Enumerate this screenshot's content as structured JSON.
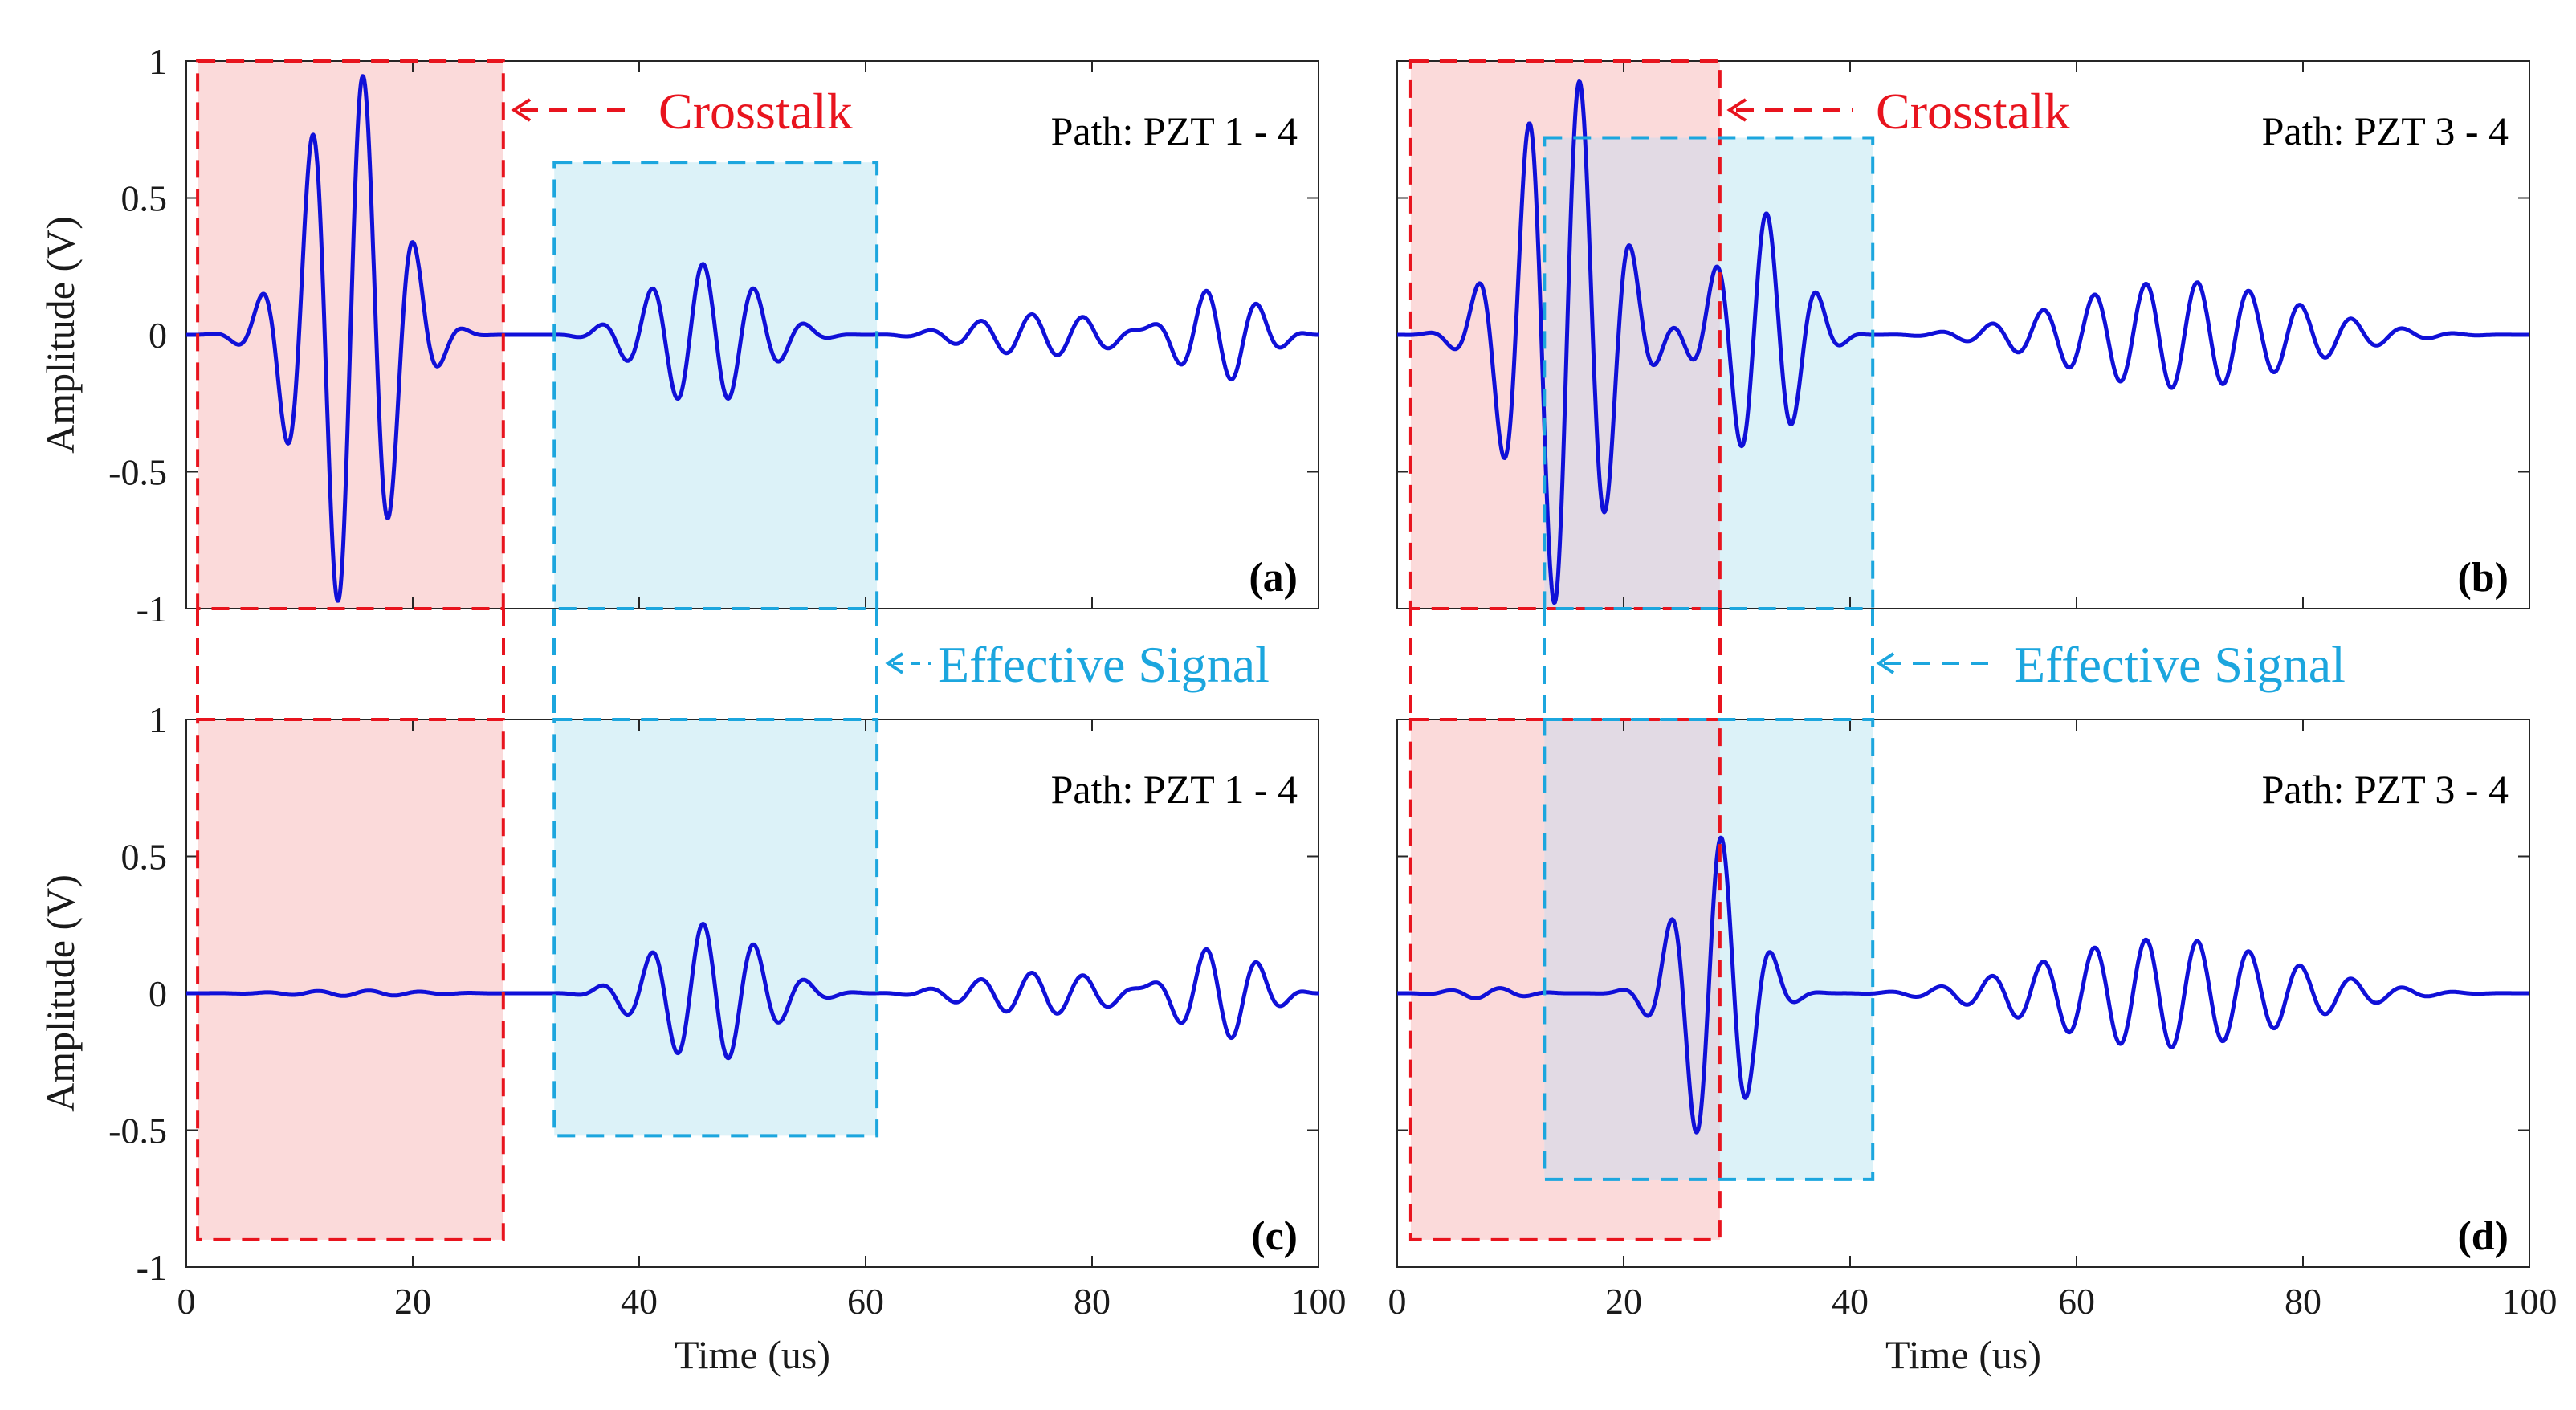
{
  "chart_data": [
    {
      "id": "a",
      "type": "line",
      "panel_label": "(a)",
      "path_label": "Path: PZT 1 - 4",
      "ylabel": "Amplitude (V)",
      "xlabel": "",
      "xlim": [
        0,
        100
      ],
      "ylim": [
        -1,
        1
      ],
      "xticks": [
        "0",
        "20",
        "40",
        "60",
        "80",
        "100"
      ],
      "xticks_shown": false,
      "yticks": [
        "-1",
        "-0.5",
        "0",
        "0.5",
        "1"
      ],
      "yticks_shown": true,
      "line_color": "#1010D8",
      "series": [
        {
          "packets": [
            {
              "t0": 0,
              "t1": 28,
              "amp": 1.0,
              "freq": 0.22,
              "center": 14.5,
              "sigma": 5.2
            },
            {
              "t0": 32,
              "t1": 60,
              "amp": 0.26,
              "freq": 0.22,
              "center": 45,
              "sigma": 8
            },
            {
              "t0": 60,
              "t1": 100,
              "amp": 0.1,
              "freq": 0.22,
              "center": 70,
              "sigma": 10
            },
            {
              "t0": 80,
              "t1": 100,
              "amp": 0.2,
              "freq": 0.22,
              "center": 95,
              "sigma": 8
            }
          ]
        }
      ],
      "boxes": [
        {
          "kind": "crosstalk",
          "x": [
            1,
            28
          ],
          "y": [
            -1,
            1
          ]
        },
        {
          "kind": "effective",
          "x": [
            32.5,
            61
          ],
          "y": [
            -1,
            0.63
          ]
        }
      ]
    },
    {
      "id": "b",
      "type": "line",
      "panel_label": "(b)",
      "path_label": "Path: PZT 3 - 4",
      "ylabel": "",
      "xlabel": "",
      "xlim": [
        0,
        100
      ],
      "ylim": [
        -1,
        1
      ],
      "xticks": [
        "0",
        "20",
        "40",
        "60",
        "80",
        "100"
      ],
      "xticks_shown": false,
      "yticks": [
        "-1",
        "-0.5",
        "0",
        "0.5",
        "1"
      ],
      "yticks_shown": false,
      "line_color": "#1010D8",
      "series": [
        {
          "packets": [
            {
              "t0": 0,
              "t1": 28,
              "amp": 1.0,
              "freq": 0.22,
              "center": 15,
              "sigma": 5.5
            },
            {
              "t0": 22,
              "t1": 42,
              "amp": 0.45,
              "freq": 0.22,
              "center": 32,
              "sigma": 6
            },
            {
              "t0": 42,
              "t1": 100,
              "amp": 0.2,
              "freq": 0.22,
              "center": 66,
              "sigma": 16
            }
          ]
        }
      ],
      "boxes": [
        {
          "kind": "crosstalk",
          "x": [
            1.2,
            28.5
          ],
          "y": [
            -1,
            1
          ]
        },
        {
          "kind": "effective",
          "x": [
            13,
            42
          ],
          "y": [
            -1,
            0.72
          ]
        }
      ]
    },
    {
      "id": "c",
      "type": "line",
      "panel_label": "(c)",
      "path_label": "Path: PZT 1 - 4",
      "ylabel": "Amplitude (V)",
      "xlabel": "Time (us)",
      "xlim": [
        0,
        100
      ],
      "ylim": [
        -1,
        1
      ],
      "xticks": [
        "0",
        "20",
        "40",
        "60",
        "80",
        "100"
      ],
      "xticks_shown": true,
      "yticks": [
        "-1",
        "-0.5",
        "0",
        "0.5",
        "1"
      ],
      "yticks_shown": true,
      "line_color": "#1010D8",
      "series": [
        {
          "packets": [
            {
              "t0": 0,
              "t1": 30,
              "amp": 0.01,
              "freq": 0.22,
              "center": 15,
              "sigma": 10
            },
            {
              "t0": 32,
              "t1": 62,
              "amp": 0.26,
              "freq": 0.22,
              "center": 45,
              "sigma": 7
            },
            {
              "t0": 60,
              "t1": 100,
              "amp": 0.1,
              "freq": 0.22,
              "center": 70,
              "sigma": 10
            },
            {
              "t0": 80,
              "t1": 100,
              "amp": 0.2,
              "freq": 0.22,
              "center": 95,
              "sigma": 8
            }
          ]
        }
      ],
      "boxes": [
        {
          "kind": "crosstalk",
          "x": [
            1,
            28
          ],
          "y": [
            -0.9,
            1
          ]
        },
        {
          "kind": "effective",
          "x": [
            32.5,
            61
          ],
          "y": [
            -0.52,
            1
          ]
        }
      ]
    },
    {
      "id": "d",
      "type": "line",
      "panel_label": "(d)",
      "path_label": "Path: PZT 3 - 4",
      "ylabel": "",
      "xlabel": "Time (us)",
      "xlim": [
        0,
        100
      ],
      "ylim": [
        -1,
        1
      ],
      "xticks": [
        "0",
        "20",
        "40",
        "60",
        "80",
        "100"
      ],
      "xticks_shown": true,
      "yticks": [
        "-1",
        "-0.5",
        "0",
        "0.5",
        "1"
      ],
      "yticks_shown": false,
      "line_color": "#1010D8",
      "series": [
        {
          "packets": [
            {
              "t0": 0,
              "t1": 16,
              "amp": 0.02,
              "freq": 0.22,
              "center": 8,
              "sigma": 6
            },
            {
              "t0": 16,
              "t1": 40,
              "amp": 0.58,
              "freq": 0.22,
              "center": 28,
              "sigma": 3.8
            },
            {
              "t0": 38,
              "t1": 100,
              "amp": 0.2,
              "freq": 0.22,
              "center": 66,
              "sigma": 16
            }
          ]
        }
      ],
      "boxes": [
        {
          "kind": "crosstalk",
          "x": [
            1.2,
            28.5
          ],
          "y": [
            -0.9,
            1
          ]
        },
        {
          "kind": "effective",
          "x": [
            13,
            42
          ],
          "y": [
            -0.68,
            1
          ]
        }
      ]
    }
  ],
  "annotations": {
    "crosstalk_text": "Crosstalk",
    "effective_text": "Effective Signal",
    "crosstalk_color": "#E8141E",
    "effective_color": "#1CA6DE",
    "crosstalk_fill": "#FBDADA",
    "effective_fill": "#DCF2F8",
    "overlap_fill": "#E2DAE4"
  }
}
